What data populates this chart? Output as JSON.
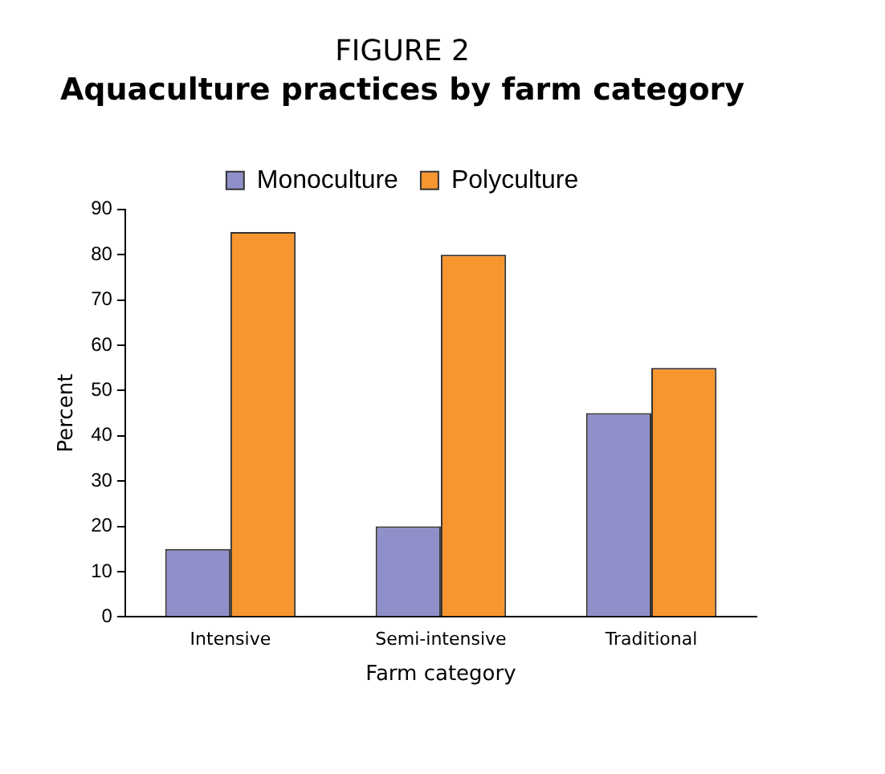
{
  "chart_data": {
    "type": "bar",
    "title": "FIGURE 2",
    "subtitle": "Aquaculture practices by farm category",
    "xlabel": "Farm category",
    "ylabel": "Percent",
    "categories": [
      "Intensive",
      "Semi-intensive",
      "Traditional"
    ],
    "series": [
      {
        "name": "Monoculture",
        "color": "#8f8fc9",
        "values": [
          15,
          20,
          45
        ]
      },
      {
        "name": "Polyculture",
        "color": "#f7962f",
        "values": [
          85,
          80,
          55
        ]
      }
    ],
    "ylim": [
      0,
      90
    ],
    "yticks": [
      0,
      10,
      20,
      30,
      40,
      50,
      60,
      70,
      80,
      90
    ],
    "grid": false,
    "legend": "top"
  }
}
